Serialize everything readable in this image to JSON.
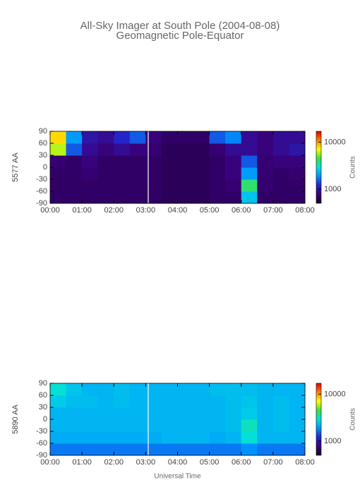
{
  "chart_data": [
    {
      "type": "heatmap",
      "title": "All-Sky Imager at South Pole (2004-08-08)",
      "subtitle": "Geomagnetic Pole-Equator",
      "y_label": "5577 AA",
      "colorbar_label": "Counts",
      "xbins": [
        0,
        0.5,
        1,
        1.5,
        2,
        2.5,
        3,
        3.5,
        4,
        4.5,
        5,
        5.5,
        6,
        6.5,
        7,
        7.5,
        8
      ],
      "ybins": [
        -90,
        -60,
        -30,
        0,
        30,
        60,
        90
      ],
      "z": [
        [
          700,
          700,
          700,
          700,
          700,
          700,
          700,
          650,
          650,
          650,
          700,
          700,
          2500,
          700,
          700,
          700
        ],
        [
          700,
          700,
          700,
          700,
          700,
          700,
          700,
          650,
          650,
          650,
          700,
          750,
          4000,
          750,
          700,
          700
        ],
        [
          700,
          700,
          750,
          700,
          700,
          700,
          700,
          650,
          650,
          650,
          700,
          800,
          2000,
          750,
          700,
          750
        ],
        [
          750,
          700,
          800,
          700,
          700,
          700,
          700,
          650,
          650,
          650,
          700,
          800,
          1500,
          750,
          800,
          800
        ],
        [
          6000,
          1500,
          900,
          800,
          900,
          800,
          750,
          650,
          650,
          650,
          750,
          900,
          900,
          800,
          900,
          1000
        ],
        [
          8000,
          2000,
          1000,
          900,
          1200,
          1500,
          800,
          700,
          700,
          700,
          1500,
          1800,
          900,
          800,
          900,
          900
        ]
      ],
      "data_gap_x": 3.08,
      "xlim": [
        0,
        8
      ],
      "xticks": [
        {
          "value": 0,
          "label": "00:00"
        },
        {
          "value": 1,
          "label": "01:00"
        },
        {
          "value": 2,
          "label": "02:00"
        },
        {
          "value": 3,
          "label": "03:00"
        },
        {
          "value": 4,
          "label": "04:00"
        },
        {
          "value": 5,
          "label": "05:00"
        },
        {
          "value": 6,
          "label": "06:00"
        },
        {
          "value": 7,
          "label": "07:00"
        },
        {
          "value": 8,
          "label": "08:00"
        }
      ],
      "ylim": [
        -90,
        90
      ],
      "yticks": [
        -90,
        -60,
        -30,
        0,
        30,
        60,
        90
      ],
      "clim": [
        500,
        17000
      ],
      "cticks": [
        1000,
        10000
      ],
      "log_color": true,
      "colormap": [
        "#14002a",
        "#3a0078",
        "#2424c8",
        "#0090ff",
        "#00e0e0",
        "#40e040",
        "#ffff00",
        "#ff8000",
        "#e00000"
      ]
    },
    {
      "type": "heatmap",
      "y_label": "5890 AA",
      "x_label": "Universal Time",
      "colorbar_label": "Counts",
      "xbins": [
        0,
        0.5,
        1,
        1.5,
        2,
        2.5,
        3,
        3.5,
        4,
        4.5,
        5,
        5.5,
        6,
        6.5,
        7,
        7.5,
        8
      ],
      "ybins": [
        -90,
        -60,
        -30,
        0,
        30,
        60,
        90
      ],
      "z": [
        [
          1700,
          1700,
          1700,
          1700,
          1700,
          1700,
          1700,
          1700,
          1700,
          1700,
          1700,
          1700,
          1900,
          1700,
          1700,
          1700
        ],
        [
          2200,
          2200,
          2200,
          2200,
          2200,
          2200,
          2200,
          2300,
          2300,
          2300,
          2200,
          2300,
          3000,
          2300,
          2300,
          2300
        ],
        [
          2300,
          2300,
          2300,
          2300,
          2300,
          2300,
          2300,
          2300,
          2300,
          2300,
          2300,
          2400,
          3200,
          2300,
          2400,
          2300
        ],
        [
          2300,
          2300,
          2300,
          2300,
          2300,
          2300,
          2300,
          2300,
          2300,
          2300,
          2300,
          2400,
          2600,
          2300,
          2400,
          2300
        ],
        [
          2600,
          2400,
          2400,
          2300,
          2400,
          2300,
          2300,
          2300,
          2300,
          2300,
          2300,
          2400,
          2500,
          2300,
          2400,
          2300
        ],
        [
          3000,
          2500,
          2300,
          2300,
          2400,
          2300,
          2300,
          2300,
          2300,
          2300,
          2400,
          2400,
          2400,
          2300,
          2300,
          2300
        ]
      ],
      "data_gap_x": 3.08,
      "xlim": [
        0,
        8
      ],
      "xticks": [
        {
          "value": 0,
          "label": "00:00"
        },
        {
          "value": 1,
          "label": "01:00"
        },
        {
          "value": 2,
          "label": "02:00"
        },
        {
          "value": 3,
          "label": "03:00"
        },
        {
          "value": 4,
          "label": "04:00"
        },
        {
          "value": 5,
          "label": "05:00"
        },
        {
          "value": 6,
          "label": "06:00"
        },
        {
          "value": 7,
          "label": "07:00"
        },
        {
          "value": 8,
          "label": "08:00"
        }
      ],
      "ylim": [
        -90,
        90
      ],
      "yticks": [
        -90,
        -60,
        -30,
        0,
        30,
        60,
        90
      ],
      "clim": [
        500,
        17000
      ],
      "cticks": [
        1000,
        10000
      ],
      "log_color": true,
      "colormap": [
        "#14002a",
        "#3a0078",
        "#2424c8",
        "#0090ff",
        "#00e0e0",
        "#40e040",
        "#ffff00",
        "#ff8000",
        "#e00000"
      ]
    }
  ]
}
